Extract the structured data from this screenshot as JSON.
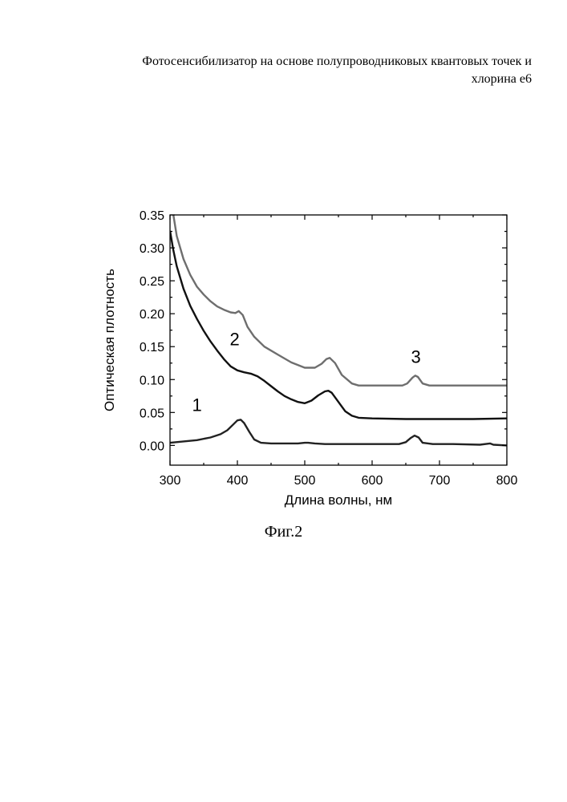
{
  "header": {
    "line1": "Фотосенсибилизатор на основе полупроводниковых квантовых точек и",
    "line2": "хлорина е6"
  },
  "caption": "Фиг.2",
  "chart_data": {
    "type": "line",
    "xlabel": "Длина волны, нм",
    "ylabel": "Оптическая плотность",
    "xlim": [
      300,
      800
    ],
    "ylim": [
      -0.03,
      0.35
    ],
    "xticks": [
      300,
      400,
      500,
      600,
      700,
      800
    ],
    "yticks": [
      0.0,
      0.05,
      0.1,
      0.15,
      0.2,
      0.25,
      0.3,
      0.35
    ],
    "ytick_labels": [
      "0.00",
      "0.05",
      "0.10",
      "0.15",
      "0.20",
      "0.25",
      "0.30",
      "0.35"
    ],
    "grid": false,
    "annotations": [
      {
        "text": "1",
        "x": 340,
        "y": 0.052
      },
      {
        "text": "2",
        "x": 396,
        "y": 0.152
      },
      {
        "text": "3",
        "x": 665,
        "y": 0.125
      }
    ],
    "series": [
      {
        "color": "#222222",
        "x": [
          300,
          320,
          340,
          360,
          375,
          385,
          395,
          400,
          405,
          410,
          418,
          425,
          435,
          450,
          470,
          490,
          500,
          505,
          515,
          530,
          560,
          600,
          640,
          650,
          657,
          663,
          669,
          675,
          690,
          720,
          760,
          775,
          780,
          800
        ],
        "y": [
          0.004,
          0.006,
          0.008,
          0.012,
          0.017,
          0.023,
          0.033,
          0.038,
          0.039,
          0.034,
          0.02,
          0.009,
          0.004,
          0.003,
          0.003,
          0.003,
          0.004,
          0.004,
          0.003,
          0.002,
          0.002,
          0.002,
          0.002,
          0.005,
          0.011,
          0.015,
          0.012,
          0.004,
          0.002,
          0.002,
          0.001,
          0.003,
          0.001,
          0.0
        ]
      },
      {
        "color": "#111111",
        "x": [
          300,
          305,
          310,
          320,
          330,
          340,
          350,
          360,
          370,
          380,
          390,
          400,
          410,
          420,
          430,
          440,
          450,
          460,
          470,
          480,
          490,
          500,
          510,
          520,
          530,
          535,
          540,
          550,
          560,
          570,
          580,
          600,
          650,
          700,
          750,
          800
        ],
        "y": [
          0.326,
          0.296,
          0.272,
          0.238,
          0.212,
          0.192,
          0.174,
          0.158,
          0.144,
          0.131,
          0.12,
          0.114,
          0.111,
          0.109,
          0.105,
          0.098,
          0.09,
          0.082,
          0.075,
          0.07,
          0.066,
          0.064,
          0.068,
          0.076,
          0.082,
          0.083,
          0.08,
          0.066,
          0.052,
          0.045,
          0.042,
          0.041,
          0.04,
          0.04,
          0.04,
          0.041
        ]
      },
      {
        "color": "#6e6e6e",
        "x": [
          305,
          310,
          320,
          330,
          340,
          350,
          360,
          370,
          380,
          390,
          397,
          402,
          408,
          415,
          425,
          440,
          460,
          480,
          500,
          515,
          525,
          532,
          537,
          545,
          555,
          570,
          580,
          600,
          630,
          645,
          652,
          660,
          664,
          668,
          675,
          685,
          700,
          750,
          800
        ],
        "y": [
          0.35,
          0.318,
          0.283,
          0.259,
          0.241,
          0.229,
          0.219,
          0.211,
          0.206,
          0.202,
          0.201,
          0.204,
          0.198,
          0.18,
          0.165,
          0.15,
          0.138,
          0.126,
          0.118,
          0.118,
          0.124,
          0.131,
          0.133,
          0.125,
          0.107,
          0.094,
          0.091,
          0.091,
          0.091,
          0.091,
          0.094,
          0.103,
          0.106,
          0.104,
          0.094,
          0.091,
          0.091,
          0.091,
          0.091
        ]
      }
    ]
  }
}
